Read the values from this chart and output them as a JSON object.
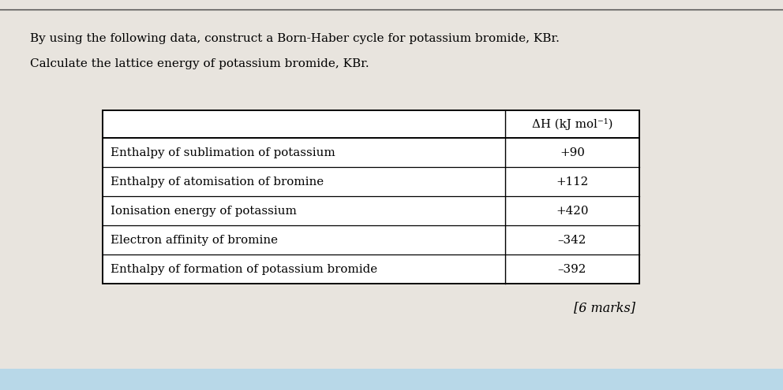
{
  "title_line1": "By using the following data, construct a Born-Haber cycle for potassium bromide, KBr.",
  "title_line2": "Calculate the lattice energy of potassium bromide, KBr.",
  "col_header": "ΔH (kJ mol⁻¹)",
  "rows": [
    [
      "Enthalpy of sublimation of potassium",
      "+90"
    ],
    [
      "Enthalpy of atomisation of bromine",
      "+112"
    ],
    [
      "Ionisation energy of potassium",
      "+420"
    ],
    [
      "Electron affinity of bromine",
      "–342"
    ],
    [
      "Enthalpy of formation of potassium bromide",
      "–392"
    ]
  ],
  "marks_text": "[6 marks]",
  "bg_color": "#d8d4ce",
  "page_color": "#e8e4de",
  "title_fontsize": 11.0,
  "table_fontsize": 10.8,
  "marks_fontsize": 11.5,
  "top_border_color": "#555555"
}
